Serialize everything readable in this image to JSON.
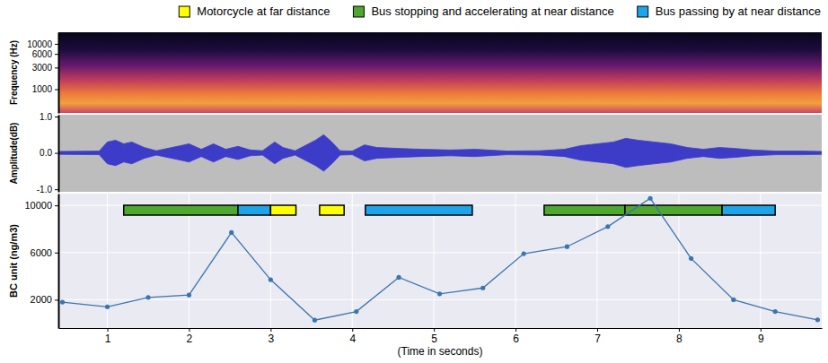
{
  "chart_data": [
    {
      "type": "spectrogram",
      "ylabel": "Frequency (Hz)",
      "log": "y",
      "xlim": [
        0.4,
        9.75
      ],
      "ylim": [
        300,
        18000
      ],
      "yticks": [
        1000,
        3000,
        6000,
        10000
      ],
      "tick_labels": "y"
    },
    {
      "type": "area",
      "ylabel": "Amplitude(dB)",
      "color": "#3c3cc8",
      "xlim": [
        0.4,
        9.75
      ],
      "ylim": [
        -1.07,
        1.05
      ],
      "yticks": [
        {
          "value": -1,
          "label": "-1.0"
        },
        {
          "value": 0,
          "label": "0.0"
        },
        {
          "value": 1,
          "label": "1.0"
        }
      ],
      "tick_labels": "y",
      "x": [
        0.4,
        0.9,
        1.0,
        1.1,
        1.2,
        1.3,
        1.45,
        1.6,
        1.9,
        2.0,
        2.15,
        2.3,
        2.45,
        2.6,
        2.75,
        2.9,
        3.05,
        3.15,
        3.3,
        3.55,
        3.65,
        3.75,
        3.85,
        4.0,
        4.15,
        4.3,
        4.6,
        4.85,
        5.2,
        5.5,
        5.9,
        6.3,
        6.6,
        6.8,
        7.0,
        7.2,
        7.35,
        7.5,
        7.7,
        7.9,
        8.1,
        8.3,
        8.5,
        8.7,
        8.9,
        9.2,
        9.5,
        9.75
      ],
      "values": [
        0.04,
        0.05,
        0.3,
        0.35,
        0.25,
        0.3,
        0.15,
        0.06,
        0.2,
        0.25,
        0.1,
        0.25,
        0.1,
        0.18,
        0.08,
        0.06,
        0.3,
        0.15,
        0.06,
        0.35,
        0.5,
        0.3,
        0.06,
        0.05,
        0.22,
        0.15,
        0.12,
        0.1,
        0.08,
        0.1,
        0.05,
        0.06,
        0.1,
        0.2,
        0.25,
        0.3,
        0.4,
        0.35,
        0.3,
        0.25,
        0.15,
        0.1,
        0.15,
        0.12,
        0.08,
        0.05,
        0.05,
        0.04
      ]
    },
    {
      "type": "line",
      "xlabel": "(Time in seconds)",
      "ylabel": "BC unit (ng/m3)",
      "xlim": [
        0.4,
        9.75
      ],
      "ylim": [
        -400,
        11000
      ],
      "xticks": [
        1,
        2,
        3,
        4,
        5,
        6,
        7,
        8,
        9
      ],
      "yticks": [
        2000,
        6000,
        10000
      ],
      "grid": true,
      "color": "#3b75af",
      "marker": "circle",
      "legend": "top",
      "x": [
        0.45,
        1.0,
        1.5,
        2.0,
        2.52,
        3.0,
        3.54,
        4.05,
        4.57,
        5.07,
        5.6,
        6.1,
        6.63,
        7.13,
        7.65,
        8.15,
        8.67,
        9.18,
        9.7
      ],
      "values": [
        1800,
        1400,
        2200,
        2400,
        7700,
        3700,
        270,
        1000,
        3900,
        2500,
        3000,
        5900,
        6500,
        8200,
        10600,
        5500,
        2000,
        1000,
        300
      ],
      "event_types": [
        {
          "name": "Motorcycle at far distance",
          "color": "#ffff00"
        },
        {
          "name": "Bus stopping and accelerating at near distance",
          "color": "#4ea72e"
        },
        {
          "name": "Bus passing by at near distance",
          "color": "#1ea5e9"
        }
      ],
      "events": [
        {
          "kind": "Bus stopping and accelerating at near distance",
          "start": 1.2,
          "end": 2.6
        },
        {
          "kind": "Bus passing by at near distance",
          "start": 2.6,
          "end": 3.0
        },
        {
          "kind": "Motorcycle at far distance",
          "start": 3.0,
          "end": 3.31
        },
        {
          "kind": "Motorcycle at far distance",
          "start": 3.6,
          "end": 3.9
        },
        {
          "kind": "Bus passing by at near distance",
          "start": 4.16,
          "end": 5.47
        },
        {
          "kind": "Bus stopping and accelerating at near distance",
          "start": 6.35,
          "end": 7.34
        },
        {
          "kind": "Bus stopping and accelerating at near distance",
          "start": 7.34,
          "end": 8.53
        },
        {
          "kind": "Bus passing by at near distance",
          "start": 8.53,
          "end": 9.18
        }
      ]
    }
  ]
}
